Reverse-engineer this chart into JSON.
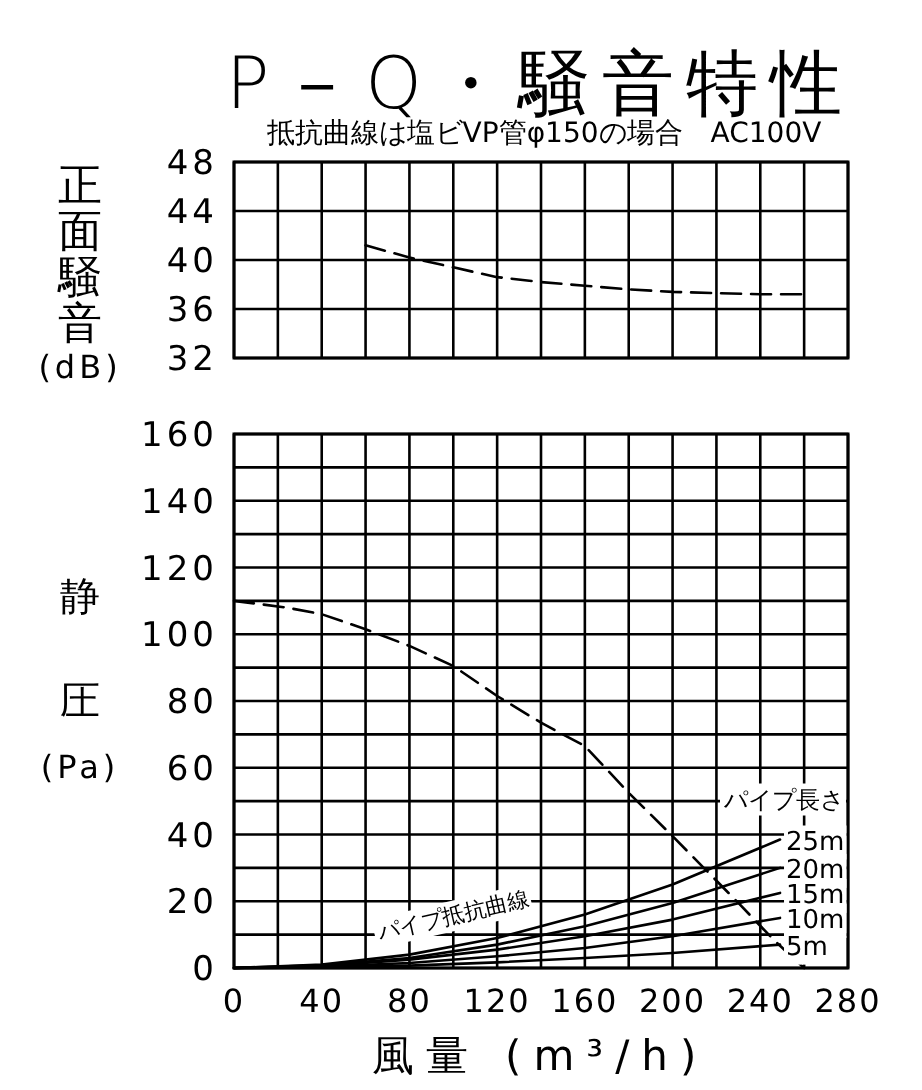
{
  "chart_data": [
    {
      "type": "line",
      "title": "P－Q・騒音特性",
      "subtitle": "抵抗曲線は塩ビVP管φ150の場合　AC100V",
      "ylabel": "正面騒音",
      "annotations": [
        "(dB)"
      ],
      "xlim": [
        0,
        280
      ],
      "xticks": [
        0,
        20,
        40,
        60,
        80,
        100,
        120,
        140,
        160,
        180,
        200,
        220,
        240,
        260,
        280
      ],
      "ylim": [
        32,
        48
      ],
      "yticks": [
        32,
        36,
        40,
        44,
        48
      ],
      "tick_labels": "y",
      "grid": true,
      "series": [
        {
          "color": "#000000",
          "line_style": "dashed",
          "x": [
            60,
            80,
            100,
            120,
            140,
            160,
            180,
            200,
            220,
            240,
            260
          ],
          "values": [
            41.2,
            40.2,
            39.4,
            38.6,
            38.2,
            37.9,
            37.6,
            37.4,
            37.3,
            37.2,
            37.2
          ]
        }
      ]
    },
    {
      "type": "line",
      "ylabel": "静圧",
      "xlabel": "風量 (m³/h)",
      "legend_title": "パイプ長さ",
      "annotations": [
        "(Pa)",
        "パイプ抵抗曲線"
      ],
      "xlim": [
        0,
        280
      ],
      "xticks": [
        0,
        {
          "value": 20,
          "label": null
        },
        40,
        {
          "value": 60,
          "label": null
        },
        80,
        {
          "value": 100,
          "label": null
        },
        120,
        {
          "value": 140,
          "label": null
        },
        160,
        {
          "value": 180,
          "label": null
        },
        200,
        {
          "value": 220,
          "label": null
        },
        240,
        {
          "value": 260,
          "label": null
        },
        280
      ],
      "ylim": [
        0,
        160
      ],
      "yticks": [
        0,
        {
          "value": 10,
          "label": null
        },
        20,
        {
          "value": 30,
          "label": null
        },
        40,
        {
          "value": 50,
          "label": null
        },
        60,
        {
          "value": 70,
          "label": null
        },
        80,
        {
          "value": 90,
          "label": null
        },
        100,
        {
          "value": 110,
          "label": null
        },
        120,
        {
          "value": 130,
          "label": null
        },
        140,
        {
          "value": 150,
          "label": null
        },
        160
      ],
      "grid": true,
      "series": [
        {
          "color": "#000000",
          "line_style": "dashed",
          "x": [
            0,
            24,
            40,
            60,
            80,
            100,
            120,
            140,
            160,
            180,
            200,
            215,
            230,
            246,
            260
          ],
          "values": [
            110,
            108,
            106,
            101.5,
            96.5,
            90.5,
            81.5,
            73.5,
            66.5,
            52.5,
            39.5,
            29.5,
            19.5,
            8.5,
            0
          ]
        },
        {
          "name": "25m",
          "color": "#000000",
          "line_style": "solid",
          "x": [
            0,
            40,
            80,
            120,
            160,
            200,
            249
          ],
          "values": [
            0,
            1,
            4,
            9,
            16,
            25,
            38.5
          ]
        },
        {
          "name": "20m",
          "color": "#000000",
          "line_style": "solid",
          "x": [
            0,
            40,
            80,
            120,
            160,
            200,
            249
          ],
          "values": [
            0,
            0.8,
            3,
            7,
            12.5,
            19.5,
            30
          ]
        },
        {
          "name": "15m",
          "color": "#000000",
          "line_style": "solid",
          "x": [
            0,
            40,
            80,
            120,
            160,
            200,
            249
          ],
          "values": [
            0,
            0.6,
            2.5,
            5.5,
            9.5,
            14.5,
            22.5
          ]
        },
        {
          "name": "10m",
          "color": "#000000",
          "line_style": "solid",
          "x": [
            0,
            40,
            80,
            120,
            160,
            200,
            249
          ],
          "values": [
            0,
            0.4,
            1.5,
            3.5,
            6,
            9.5,
            15
          ]
        },
        {
          "name": "5m",
          "color": "#000000",
          "line_style": "solid",
          "x": [
            0,
            40,
            80,
            120,
            160,
            200,
            249
          ],
          "values": [
            0,
            0.2,
            0.7,
            1.7,
            3,
            4.5,
            7
          ]
        }
      ]
    }
  ]
}
